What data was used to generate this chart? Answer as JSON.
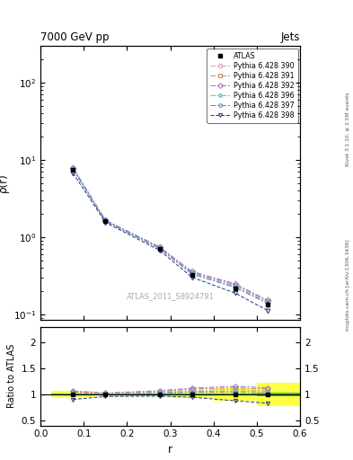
{
  "title": "7000 GeV pp",
  "title_right": "Jets",
  "ylabel_main": "ρ(r)",
  "ylabel_ratio": "Ratio to ATLAS",
  "xlabel": "r",
  "watermark": "ATLAS_2011_S8924791",
  "right_label": "mcplots.cern.ch [arXiv:1306.3436]",
  "right_label2": "Rivet 3.1.10, ≥ 2.5M events",
  "r_values": [
    0.075,
    0.15,
    0.275,
    0.35,
    0.45,
    0.525
  ],
  "atlas_y": [
    7.5,
    1.62,
    0.7,
    0.32,
    0.215,
    0.135
  ],
  "atlas_yerr_lo": [
    0.06,
    0.05,
    0.025,
    0.018,
    0.014,
    0.012
  ],
  "atlas_yerr_hi": [
    0.06,
    0.05,
    0.025,
    0.018,
    0.014,
    0.012
  ],
  "pythia_390_y": [
    7.75,
    1.63,
    0.73,
    0.345,
    0.235,
    0.145
  ],
  "pythia_391_y": [
    7.85,
    1.645,
    0.74,
    0.352,
    0.242,
    0.149
  ],
  "pythia_392_y": [
    7.95,
    1.66,
    0.748,
    0.358,
    0.248,
    0.152
  ],
  "pythia_396_y": [
    7.65,
    1.615,
    0.72,
    0.338,
    0.228,
    0.142
  ],
  "pythia_397_y": [
    7.55,
    1.605,
    0.71,
    0.332,
    0.222,
    0.138
  ],
  "pythia_398_y": [
    6.75,
    1.55,
    0.675,
    0.302,
    0.188,
    0.112
  ],
  "ratio_atlas_green_lo": [
    0.008,
    0.008,
    0.008,
    0.012,
    0.02,
    0.03
  ],
  "ratio_atlas_green_hi": [
    0.008,
    0.008,
    0.008,
    0.012,
    0.02,
    0.03
  ],
  "ratio_atlas_yellow_lo": [
    0.06,
    0.04,
    0.04,
    0.07,
    0.12,
    0.22
  ],
  "ratio_atlas_yellow_hi": [
    0.06,
    0.04,
    0.04,
    0.07,
    0.12,
    0.22
  ],
  "ratio_390": [
    1.033,
    1.008,
    1.043,
    1.078,
    1.093,
    1.074
  ],
  "ratio_391": [
    1.047,
    1.016,
    1.057,
    1.1,
    1.126,
    1.104
  ],
  "ratio_392": [
    1.06,
    1.025,
    1.069,
    1.119,
    1.154,
    1.126
  ],
  "ratio_396": [
    1.02,
    0.997,
    1.029,
    1.056,
    1.06,
    1.052
  ],
  "ratio_397": [
    1.007,
    0.99,
    1.014,
    1.038,
    1.033,
    1.022
  ],
  "ratio_398": [
    0.9,
    0.957,
    0.964,
    0.944,
    0.874,
    0.83
  ],
  "r_band_edges": [
    0.025,
    0.125,
    0.2,
    0.3,
    0.4,
    0.5,
    0.6
  ],
  "colors_390": "#dd99bb",
  "colors_391": "#cc8866",
  "colors_392": "#9977cc",
  "colors_396": "#66bbcc",
  "colors_397": "#5588bb",
  "colors_398": "#223377",
  "ylim_main": [
    0.085,
    300
  ],
  "ylim_ratio": [
    0.4,
    2.3
  ],
  "yticks_ratio": [
    0.5,
    1.0,
    1.5,
    2.0
  ],
  "xlim": [
    0.0,
    0.6
  ]
}
